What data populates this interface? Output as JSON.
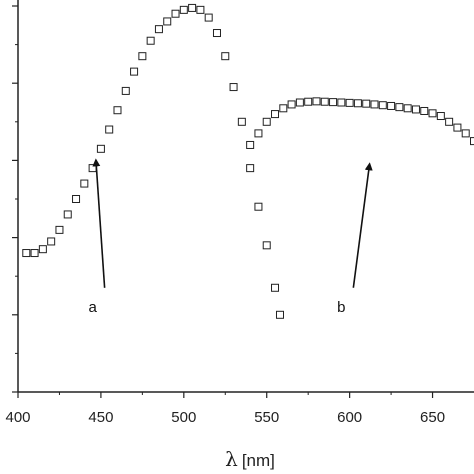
{
  "chart_data": {
    "type": "scatter",
    "title": "",
    "xlabel_symbol": "λ",
    "xlabel_unit": "[nm]",
    "ylabel": "",
    "xlim": [
      400,
      675
    ],
    "ylim": [
      0,
      1.0
    ],
    "xticks": [
      400,
      450,
      500,
      550,
      600,
      650
    ],
    "yticks": [
      0,
      0.2,
      0.4,
      0.6,
      0.8,
      1.0
    ],
    "grid": false,
    "marker": "open-square",
    "series": [
      {
        "label": "a",
        "x": [
          405,
          410,
          415,
          420,
          425,
          430,
          435,
          440,
          445,
          450,
          455,
          460,
          465,
          470,
          475,
          480,
          485,
          490,
          495,
          500,
          505,
          510,
          515,
          520,
          525,
          530,
          535,
          540,
          545,
          550,
          555,
          558
        ],
        "y": [
          0.36,
          0.36,
          0.37,
          0.39,
          0.42,
          0.46,
          0.5,
          0.54,
          0.58,
          0.63,
          0.68,
          0.73,
          0.78,
          0.83,
          0.87,
          0.91,
          0.94,
          0.96,
          0.98,
          0.99,
          0.995,
          0.99,
          0.97,
          0.93,
          0.87,
          0.79,
          0.7,
          0.58,
          0.48,
          0.38,
          0.27,
          0.2
        ]
      },
      {
        "label": "b",
        "x": [
          540,
          545,
          550,
          555,
          560,
          565,
          570,
          575,
          580,
          585,
          590,
          595,
          600,
          605,
          610,
          615,
          620,
          625,
          630,
          635,
          640,
          645,
          650,
          655,
          660,
          665,
          670,
          675
        ],
        "y": [
          0.64,
          0.67,
          0.7,
          0.72,
          0.735,
          0.745,
          0.75,
          0.752,
          0.753,
          0.752,
          0.751,
          0.75,
          0.749,
          0.748,
          0.747,
          0.745,
          0.743,
          0.741,
          0.738,
          0.735,
          0.732,
          0.728,
          0.722,
          0.715,
          0.7,
          0.685,
          0.67,
          0.65
        ]
      }
    ],
    "annotations": [
      {
        "text": "a",
        "x": 445,
        "y": 0.27,
        "arrow_to": [
          447,
          0.6
        ]
      },
      {
        "text": "b",
        "x": 595,
        "y": 0.27,
        "arrow_to": [
          612,
          0.59
        ]
      }
    ]
  }
}
